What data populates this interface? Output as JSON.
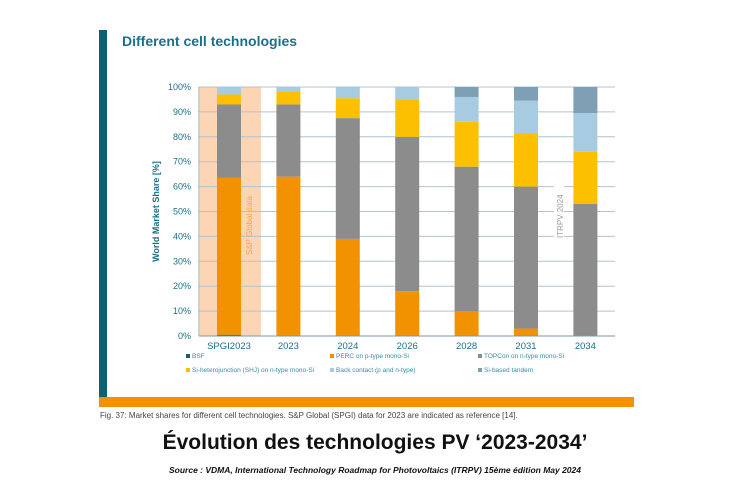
{
  "chart_data": {
    "type": "bar",
    "stacked": true,
    "title": "Different cell technologies",
    "ylabel": "World Market Share [%]",
    "ylim": [
      0,
      100
    ],
    "yticks": [
      "0%",
      "10%",
      "20%",
      "30%",
      "40%",
      "50%",
      "60%",
      "70%",
      "80%",
      "90%",
      "100%"
    ],
    "grid": true,
    "legend_position": "bottom",
    "categories": [
      "SPGI2023",
      "2023",
      "2024",
      "2026",
      "2028",
      "2031",
      "2034"
    ],
    "series": [
      {
        "name": "BSF",
        "color": "#1a5e6e",
        "values": [
          0.5,
          0,
          0,
          0,
          0,
          0,
          0
        ]
      },
      {
        "name": "PERC on p-type mono-Si",
        "color": "#f39200",
        "values": [
          63,
          64,
          39,
          18,
          10,
          3,
          0
        ]
      },
      {
        "name": "TOPCon on n-type mono-Si",
        "color": "#8c8c8c",
        "values": [
          29.5,
          29,
          48.5,
          62,
          58,
          57,
          53
        ]
      },
      {
        "name": "Si-heterojunction (SHJ) on n-type mono-Si",
        "color": "#fcc000",
        "values": [
          4,
          5,
          8,
          15,
          18,
          21.5,
          21
        ]
      },
      {
        "name": "Back contact (p and n-type)",
        "color": "#a7cbe0",
        "values": [
          3,
          2,
          4.5,
          5,
          10,
          13,
          15.5
        ]
      },
      {
        "name": "Si-based tandem",
        "color": "#7f9fb5",
        "values": [
          0,
          0,
          0,
          0,
          4,
          5.5,
          10.5
        ]
      }
    ],
    "annotations": [
      "S&P Global data",
      "ITRPV 2024"
    ],
    "reference_band_color": "#fcd5b4"
  },
  "caption": "Fig. 37: Market shares for different cell technologies. S&P Global (SPGI) data for 2023 are indicated as reference [14].",
  "headline": "Évolution des technologies PV ‘2023-2034’",
  "source": "Source : VDMA, International Technology Roadmap for Photovoltaics (ITRPV) 15ème édition May 2024"
}
